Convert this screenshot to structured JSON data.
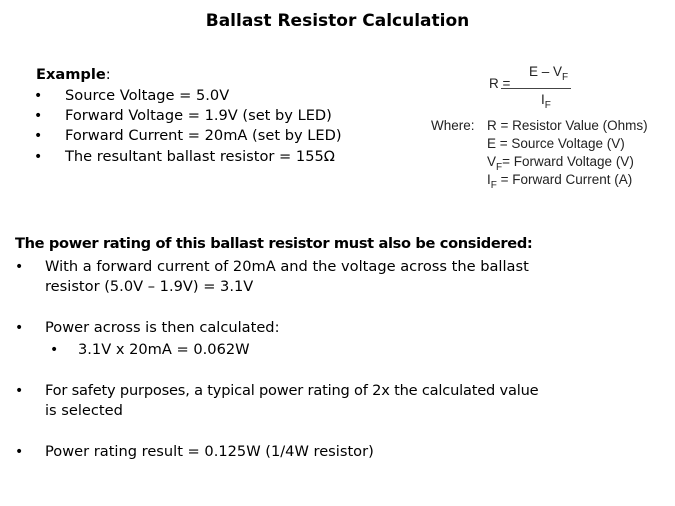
{
  "title": "Ballast Resistor Calculation",
  "example": {
    "heading": "Example",
    "colon": ":",
    "items": [
      "Source Voltage = 5.0V",
      "Forward Voltage = 1.9V (set by LED)",
      "Forward Current = 20mA (set by LED)",
      "The resultant ballast resistor = 155Ω"
    ]
  },
  "formula": {
    "lhs": "R  =",
    "numerator": "E – V",
    "numerator_sub": "F",
    "denominator": "I",
    "denominator_sub": "F",
    "where_label": "Where:",
    "definitions": [
      {
        "sym": "R",
        "sub": "",
        "desc": " = Resistor Value (Ohms)"
      },
      {
        "sym": "E",
        "sub": "",
        "desc": " = Source Voltage (V)"
      },
      {
        "sym": "V",
        "sub": "F",
        "desc": "= Forward Voltage (V)"
      },
      {
        "sym": "I",
        "sub": "F",
        "desc": " = Forward Current (A)"
      }
    ]
  },
  "power": {
    "heading": "The power rating of this ballast resistor must also be considered:",
    "bullet1_line1": "With a forward current of 20mA and the voltage across the ballast",
    "bullet1_line2": "resistor (5.0V – 1.9V) = 3.1V",
    "bullet2": "Power across is then calculated:",
    "sub_bullet": "3.1V x 20mA = 0.062W",
    "bullet3_line1": "For safety purposes, a typical power rating of 2x the calculated value",
    "bullet3_line2": "is selected",
    "bullet4": "Power rating result = 0.125W (1/4W resistor)"
  },
  "bullet_char": "•"
}
